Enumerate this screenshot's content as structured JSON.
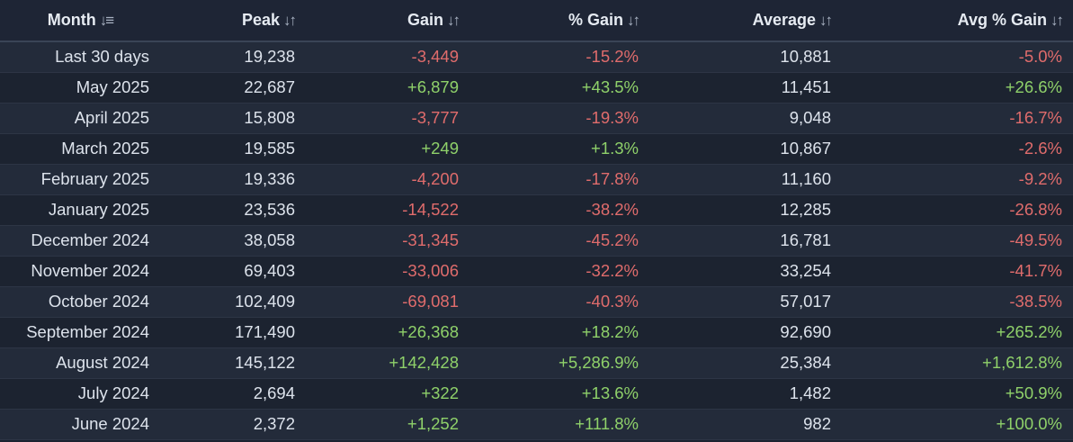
{
  "table": {
    "headers": {
      "month": "Month",
      "peak": "Peak",
      "gain": "Gain",
      "pct_gain": "% Gain",
      "average": "Average",
      "avg_pct_gain": "Avg % Gain"
    },
    "sort_icons": {
      "active": "sort-descending-icon",
      "inactive": "sort-toggle-icon"
    },
    "colors": {
      "negative": "#e06c6c",
      "positive": "#8fd16a",
      "background": "#1b2230"
    },
    "rows": [
      {
        "month": "Last 30 days",
        "peak": "19,238",
        "gain": "-3,449",
        "pct_gain": "-15.2%",
        "average": "10,881",
        "avg_pct_gain": "-5.0%"
      },
      {
        "month": "May 2025",
        "peak": "22,687",
        "gain": "+6,879",
        "pct_gain": "+43.5%",
        "average": "11,451",
        "avg_pct_gain": "+26.6%"
      },
      {
        "month": "April 2025",
        "peak": "15,808",
        "gain": "-3,777",
        "pct_gain": "-19.3%",
        "average": "9,048",
        "avg_pct_gain": "-16.7%"
      },
      {
        "month": "March 2025",
        "peak": "19,585",
        "gain": "+249",
        "pct_gain": "+1.3%",
        "average": "10,867",
        "avg_pct_gain": "-2.6%"
      },
      {
        "month": "February 2025",
        "peak": "19,336",
        "gain": "-4,200",
        "pct_gain": "-17.8%",
        "average": "11,160",
        "avg_pct_gain": "-9.2%"
      },
      {
        "month": "January 2025",
        "peak": "23,536",
        "gain": "-14,522",
        "pct_gain": "-38.2%",
        "average": "12,285",
        "avg_pct_gain": "-26.8%"
      },
      {
        "month": "December 2024",
        "peak": "38,058",
        "gain": "-31,345",
        "pct_gain": "-45.2%",
        "average": "16,781",
        "avg_pct_gain": "-49.5%"
      },
      {
        "month": "November 2024",
        "peak": "69,403",
        "gain": "-33,006",
        "pct_gain": "-32.2%",
        "average": "33,254",
        "avg_pct_gain": "-41.7%"
      },
      {
        "month": "October 2024",
        "peak": "102,409",
        "gain": "-69,081",
        "pct_gain": "-40.3%",
        "average": "57,017",
        "avg_pct_gain": "-38.5%"
      },
      {
        "month": "September 2024",
        "peak": "171,490",
        "gain": "+26,368",
        "pct_gain": "+18.2%",
        "average": "92,690",
        "avg_pct_gain": "+265.2%"
      },
      {
        "month": "August 2024",
        "peak": "145,122",
        "gain": "+142,428",
        "pct_gain": "+5,286.9%",
        "average": "25,384",
        "avg_pct_gain": "+1,612.8%"
      },
      {
        "month": "July 2024",
        "peak": "2,694",
        "gain": "+322",
        "pct_gain": "+13.6%",
        "average": "1,482",
        "avg_pct_gain": "+50.9%"
      },
      {
        "month": "June 2024",
        "peak": "2,372",
        "gain": "+1,252",
        "pct_gain": "+111.8%",
        "average": "982",
        "avg_pct_gain": "+100.0%"
      }
    ]
  }
}
